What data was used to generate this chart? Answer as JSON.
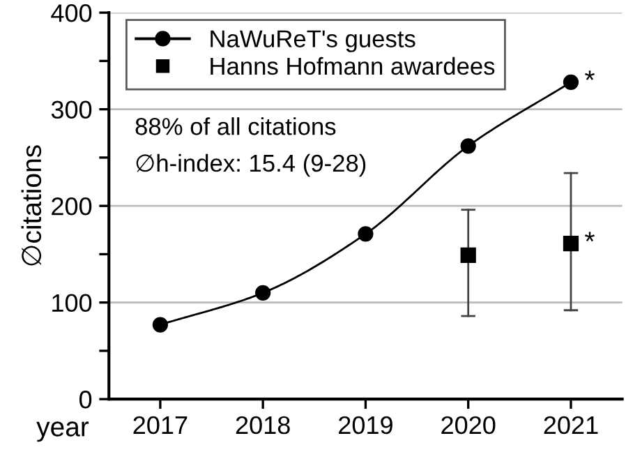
{
  "chart_data": {
    "type": "line",
    "xlabel": "year",
    "ylabel": "∅citations",
    "series": [
      {
        "name": "NaWuReT's guests",
        "color": "#000000",
        "marker": "circle",
        "x": [
          2017,
          2018,
          2019,
          2020,
          2021
        ],
        "values": [
          77,
          110,
          171,
          262,
          328
        ]
      },
      {
        "name": "Hanns Hofmann awardees",
        "type": "scatter",
        "color": "#000000",
        "marker": "square",
        "x": [
          2020,
          2021
        ],
        "values": [
          149,
          161
        ],
        "errors": [
          [
            86,
            196
          ],
          [
            92,
            234
          ]
        ]
      }
    ],
    "xlim": [
      2016.5,
      2021.5
    ],
    "xticks": [
      2017,
      2018,
      2019,
      2020,
      2021
    ],
    "ylim": [
      0,
      400
    ],
    "yticks": [
      0,
      {
        "value": 50,
        "label": null
      },
      100,
      {
        "value": 150,
        "label": null
      },
      200,
      {
        "value": 250,
        "label": null
      },
      300,
      {
        "value": 350,
        "label": null
      },
      400
    ],
    "grid": "y",
    "legend": "top left",
    "line_style": "solid",
    "annotations": [
      "88% of all citations",
      "∅h-index: 15.4 (9-28)",
      {
        "text": "*",
        "x": 2021,
        "y": 328
      },
      {
        "text": "*",
        "x": 2021,
        "y": 161
      }
    ]
  }
}
